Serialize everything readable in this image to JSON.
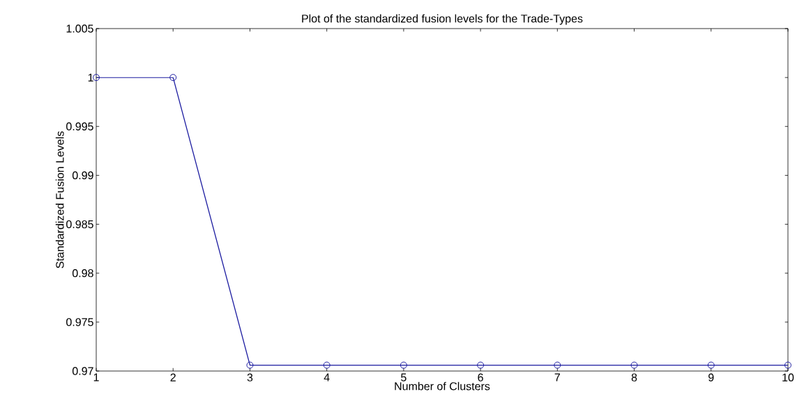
{
  "chart_data": {
    "type": "line",
    "title": "Plot of the standardized fusion levels for the Trade-Types",
    "xlabel": "Number of Clusters",
    "ylabel": "Standardized Fusion Levels",
    "x": [
      1,
      2,
      3,
      4,
      5,
      6,
      7,
      8,
      9,
      10
    ],
    "series": [
      {
        "color": "#1c1ca0",
        "values": [
          1,
          1,
          0.9706,
          0.9706,
          0.9706,
          0.9706,
          0.9706,
          0.9706,
          0.9706,
          0.9706
        ]
      }
    ],
    "xlim": [
      1,
      10
    ],
    "ylim": [
      0.97,
      1.005
    ],
    "xticks": [
      1,
      2,
      3,
      4,
      5,
      6,
      7,
      8,
      9,
      10
    ],
    "yticks": [
      0.97,
      0.975,
      0.98,
      0.985,
      0.99,
      0.995,
      1,
      1.005
    ],
    "marker": "circle",
    "line_style": "solid",
    "grid": false
  }
}
